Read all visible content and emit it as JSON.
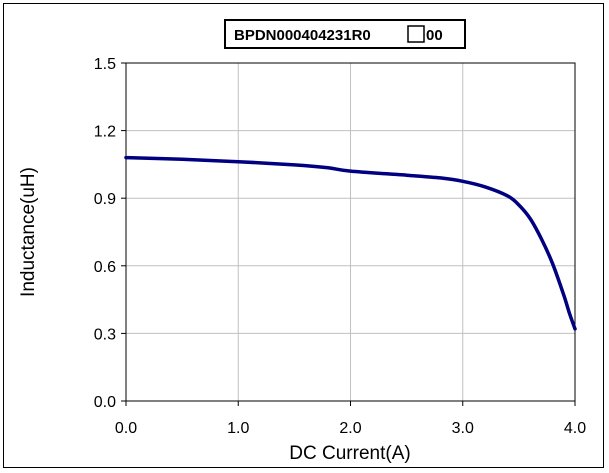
{
  "chart_data": {
    "type": "line",
    "title": "BPDN000404231R0",
    "title_box_glyph": "□",
    "title_suffix": "00",
    "xlabel": "DC Current(A)",
    "ylabel": "Inductance(uH)",
    "xlim": [
      0,
      4
    ],
    "ylim": [
      0,
      1.5
    ],
    "x_ticks": [
      "0.0",
      "1.0",
      "2.0",
      "3.0",
      "4.0"
    ],
    "y_ticks": [
      "0.0",
      "0.3",
      "0.6",
      "0.9",
      "1.2",
      "1.5"
    ],
    "grid": true,
    "series": [
      {
        "color": "#000080",
        "x": [
          0.0,
          0.5,
          1.0,
          1.5,
          1.8,
          2.0,
          2.5,
          2.8,
          3.0,
          3.2,
          3.4,
          3.5,
          3.6,
          3.7,
          3.8,
          3.9,
          3.95,
          4.0
        ],
        "y": [
          1.08,
          1.073,
          1.062,
          1.048,
          1.035,
          1.02,
          1.002,
          0.99,
          0.975,
          0.95,
          0.91,
          0.87,
          0.81,
          0.72,
          0.61,
          0.47,
          0.39,
          0.32
        ]
      }
    ]
  }
}
